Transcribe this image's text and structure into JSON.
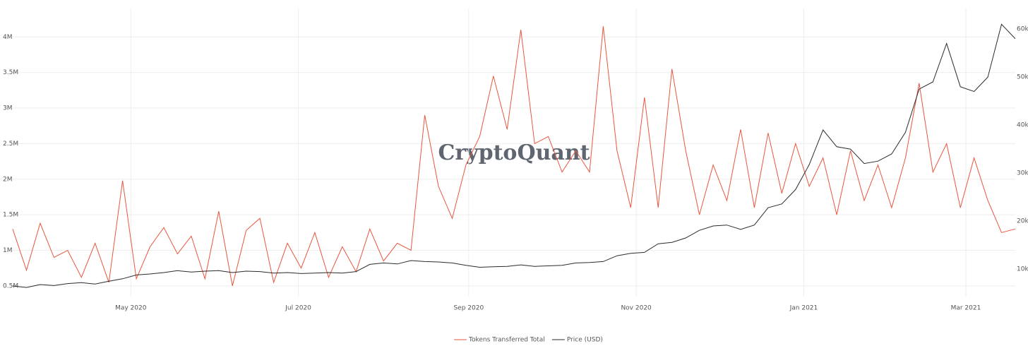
{
  "chart_data": {
    "type": "line",
    "watermark": "CryptoQuant",
    "x": [
      0,
      5,
      10,
      15,
      20,
      25,
      30,
      35,
      40,
      45,
      50,
      55,
      60,
      65,
      70,
      75,
      80,
      85,
      90,
      95,
      100,
      105,
      110,
      115,
      120,
      125,
      130,
      135,
      140,
      145,
      150,
      155,
      160,
      165,
      170,
      175,
      180,
      185,
      190,
      195,
      200,
      205,
      210,
      215,
      220,
      225,
      230,
      235,
      240,
      245,
      250,
      255,
      260,
      265,
      270,
      275,
      280,
      285,
      290,
      295,
      300,
      305,
      310,
      315,
      320,
      325,
      330,
      335,
      340,
      345,
      350,
      355,
      360,
      365
    ],
    "xlim": [
      0,
      365
    ],
    "xticks": [
      {
        "value": 43,
        "label": "May 2020"
      },
      {
        "value": 104,
        "label": "Jul 2020"
      },
      {
        "value": 166,
        "label": "Sep 2020"
      },
      {
        "value": 227,
        "label": "Nov 2020"
      },
      {
        "value": 288,
        "label": "Jan 2021"
      },
      {
        "value": 347,
        "label": "Mar 2021"
      }
    ],
    "ylim": [
      350000,
      4400000
    ],
    "yticks": [
      {
        "value": 500000,
        "label": "0.5M"
      },
      {
        "value": 1000000,
        "label": "1M"
      },
      {
        "value": 1500000,
        "label": "1.5M"
      },
      {
        "value": 2000000,
        "label": "2M"
      },
      {
        "value": 2500000,
        "label": "2.5M"
      },
      {
        "value": 3000000,
        "label": "3M"
      },
      {
        "value": 3500000,
        "label": "3.5M"
      },
      {
        "value": 4000000,
        "label": "4M"
      }
    ],
    "y2lim": [
      4300,
      64300
    ],
    "y2ticks": [
      {
        "value": 10000,
        "label": "10k"
      },
      {
        "value": 20000,
        "label": "20k"
      },
      {
        "value": 30000,
        "label": "30k"
      },
      {
        "value": 40000,
        "label": "40k"
      },
      {
        "value": 50000,
        "label": "50k"
      },
      {
        "value": 60000,
        "label": "60k"
      }
    ],
    "grid": true,
    "legend": "bottom",
    "series": [
      {
        "name": "Tokens Transferred Total",
        "color": "#e8563f",
        "values": [
          1300000,
          720000,
          1380000,
          900000,
          1000000,
          620000,
          1100000,
          550000,
          1980000,
          600000,
          1050000,
          1320000,
          950000,
          1200000,
          600000,
          1550000,
          500000,
          1280000,
          1450000,
          550000,
          1100000,
          750000,
          1250000,
          620000,
          1050000,
          700000,
          1300000,
          850000,
          1100000,
          1000000,
          2900000,
          1900000,
          1450000,
          2200000,
          2600000,
          3450000,
          2700000,
          4100000,
          2500000,
          2600000,
          2100000,
          2400000,
          2100000,
          4150000,
          2400000,
          1600000,
          3150000,
          1600000,
          3550000,
          2400000,
          1500000,
          2200000,
          1700000,
          2700000,
          1600000,
          2650000,
          1800000,
          2500000,
          1900000,
          2300000,
          1500000,
          2400000,
          1700000,
          2200000,
          1600000,
          2300000,
          3350000,
          2100000,
          2500000,
          1600000,
          2300000,
          1700000,
          1250000,
          1300000
        ]
      },
      {
        "name": "Price (USD)",
        "color": "#2b2b2b",
        "axis": "y2",
        "values": [
          6500,
          6200,
          6800,
          6600,
          7000,
          7200,
          6900,
          7500,
          8000,
          8800,
          9000,
          9300,
          9700,
          9400,
          9600,
          9700,
          9300,
          9600,
          9500,
          9200,
          9300,
          9100,
          9200,
          9300,
          9200,
          9500,
          11000,
          11300,
          11100,
          11800,
          11600,
          11500,
          11300,
          10800,
          10400,
          10500,
          10600,
          10900,
          10600,
          10700,
          10800,
          11300,
          11400,
          11600,
          12800,
          13300,
          13500,
          15300,
          15600,
          16500,
          18100,
          19000,
          19200,
          18300,
          19200,
          22800,
          23600,
          26600,
          31800,
          39000,
          35500,
          35000,
          32000,
          32500,
          34000,
          38500,
          47500,
          49000,
          57000,
          48000,
          47000,
          50000,
          61000,
          58000
        ]
      }
    ]
  }
}
